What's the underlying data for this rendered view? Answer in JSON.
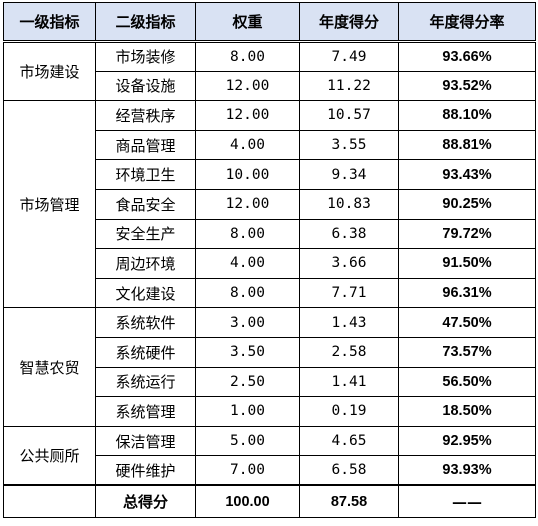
{
  "table": {
    "headers": {
      "category": "一级指标",
      "indicator": "二级指标",
      "weight": "权重",
      "score": "年度得分",
      "rate": "年度得分率"
    },
    "groups": [
      {
        "category": "市场建设",
        "rows": [
          {
            "indicator": "市场装修",
            "weight": "8.00",
            "score": "7.49",
            "rate": "93.66%"
          },
          {
            "indicator": "设备设施",
            "weight": "12.00",
            "score": "11.22",
            "rate": "93.52%"
          }
        ]
      },
      {
        "category": "市场管理",
        "rows": [
          {
            "indicator": "经营秩序",
            "weight": "12.00",
            "score": "10.57",
            "rate": "88.10%"
          },
          {
            "indicator": "商品管理",
            "weight": "4.00",
            "score": "3.55",
            "rate": "88.81%"
          },
          {
            "indicator": "环境卫生",
            "weight": "10.00",
            "score": "9.34",
            "rate": "93.43%"
          },
          {
            "indicator": "食品安全",
            "weight": "12.00",
            "score": "10.83",
            "rate": "90.25%"
          },
          {
            "indicator": "安全生产",
            "weight": "8.00",
            "score": "6.38",
            "rate": "79.72%"
          },
          {
            "indicator": "周边环境",
            "weight": "4.00",
            "score": "3.66",
            "rate": "91.50%"
          },
          {
            "indicator": "文化建设",
            "weight": "8.00",
            "score": "7.71",
            "rate": "96.31%"
          }
        ]
      },
      {
        "category": "智慧农贸",
        "rows": [
          {
            "indicator": "系统软件",
            "weight": "3.00",
            "score": "1.43",
            "rate": "47.50%"
          },
          {
            "indicator": "系统硬件",
            "weight": "3.50",
            "score": "2.58",
            "rate": "73.57%"
          },
          {
            "indicator": "系统运行",
            "weight": "2.50",
            "score": "1.41",
            "rate": "56.50%"
          },
          {
            "indicator": "系统管理",
            "weight": "1.00",
            "score": "0.19",
            "rate": "18.50%"
          }
        ]
      },
      {
        "category": "公共厕所",
        "rows": [
          {
            "indicator": "保洁管理",
            "weight": "5.00",
            "score": "4.65",
            "rate": "92.95%"
          },
          {
            "indicator": "硬件维护",
            "weight": "7.00",
            "score": "6.58",
            "rate": "93.93%"
          }
        ]
      }
    ],
    "total": {
      "category": "",
      "label": "总得分",
      "weight": "100.00",
      "score": "87.58",
      "rate": "——"
    }
  }
}
